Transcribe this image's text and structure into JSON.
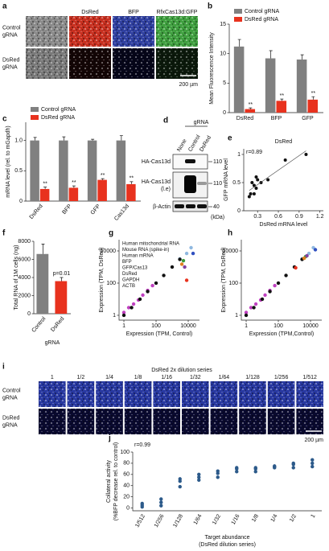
{
  "microscopy_a": {
    "label": "a",
    "columns": [
      "DsRed",
      "BFP",
      "RfxCas13d:GFP"
    ],
    "rows": [
      [
        "Control",
        "gRNA"
      ],
      [
        "DsRed",
        "gRNA"
      ]
    ],
    "scale_bar": "200 µm"
  },
  "blot_d": {
    "label": "d",
    "header": "gRNA",
    "lanes": [
      "None",
      "Control",
      "DsRed"
    ],
    "bands": [
      {
        "name": [
          "HA-Cas13d"
        ],
        "marker": "110"
      },
      {
        "name": [
          "HA-Cas13d",
          "(l.e)"
        ],
        "marker": "110"
      },
      {
        "name": [
          "β-Actin"
        ],
        "marker": "40"
      }
    ],
    "unit": "(kDa)"
  },
  "microscopy_i": {
    "label": "i",
    "title": "DsRed 2x dilution series",
    "columns": [
      "1",
      "1/2",
      "1/4",
      "1/8",
      "1/16",
      "1/32",
      "1/64",
      "1/128",
      "1/256",
      "1/512"
    ],
    "rows": [
      [
        "Control",
        "gRNA"
      ],
      [
        "DsRed",
        "gRNA"
      ]
    ],
    "scale_bar": "200 µm"
  },
  "chart_data": [
    {
      "label": "b",
      "type": "bar",
      "ylabel": "Mean Fluorescence Intensity",
      "categories": [
        "DsRed",
        "BFP",
        "GFP"
      ],
      "series": [
        {
          "name": "Control gRNA",
          "color": "#808080",
          "values": [
            11.2,
            9.2,
            9.0
          ],
          "errors": [
            1.2,
            1.3,
            0.8
          ]
        },
        {
          "name": "DsRed gRNA",
          "color": "#e8321e",
          "values": [
            0.6,
            2.0,
            2.2
          ],
          "errors": [
            0.2,
            0.3,
            0.5
          ],
          "annotations": [
            "**",
            "**",
            "**"
          ]
        }
      ],
      "ylim": [
        0,
        15
      ],
      "yticks": [
        0,
        5,
        10,
        15
      ],
      "legend": "top-left"
    },
    {
      "label": "c",
      "type": "bar",
      "ylabel": "mRNA level (rel. to mGapdh)",
      "categories": [
        "DsRed",
        "BFP",
        "GFP",
        "Cas13d"
      ],
      "series": [
        {
          "name": "Control gRNA",
          "color": "#808080",
          "values": [
            1.0,
            1.0,
            1.0,
            1.0
          ],
          "errors": [
            0.05,
            0.06,
            0.02,
            0.08
          ]
        },
        {
          "name": "DsRed gRNA",
          "color": "#e8321e",
          "values": [
            0.2,
            0.22,
            0.35,
            0.28
          ],
          "errors": [
            0.03,
            0.03,
            0.02,
            0.04
          ],
          "annotations": [
            "**",
            "**",
            "**",
            "**"
          ]
        }
      ],
      "ylim": [
        0,
        1.3
      ],
      "yticks": [
        0,
        0.5,
        {
          "value": 1,
          "label": "1.0"
        }
      ],
      "legend": "top-left"
    },
    {
      "label": "e",
      "type": "scatter",
      "title": "DsRed",
      "annotation": "r=0.89",
      "xlabel": "DsRed mRNA level",
      "ylabel": "GFP mRNA level",
      "color": "#111111",
      "x": [
        0.18,
        0.2,
        0.22,
        0.25,
        0.28,
        0.3,
        0.35,
        0.45,
        0.7,
        1.0,
        0.28,
        0.25
      ],
      "y": [
        0.25,
        0.3,
        0.5,
        0.45,
        0.4,
        0.55,
        0.5,
        0.55,
        0.9,
        1.0,
        0.6,
        0.3
      ],
      "xlim": [
        0.1,
        1.25
      ],
      "xticks": [
        0.3,
        0.6,
        0.9,
        1.2
      ],
      "ylim": [
        0,
        1.1
      ],
      "yticks": [
        0,
        0.5,
        1
      ],
      "trendline": true
    },
    {
      "label": "f",
      "type": "bar",
      "ylabel": "Total RNA of 1M cells (ng)",
      "xlabel": "gRNA",
      "categories": [
        "Control",
        "DsRed"
      ],
      "values": [
        6600,
        3600
      ],
      "errors": [
        1100,
        400
      ],
      "colors": [
        "#808080",
        "#e8321e"
      ],
      "annotation": "p=0.01",
      "ylim": [
        0,
        8000
      ],
      "yticks": [
        0,
        2000,
        4000,
        6000,
        8000
      ]
    },
    {
      "label": "g",
      "type": "scatter",
      "log": true,
      "xlabel": "Expression (TPM, Control)",
      "ylabel": "Expression (TPM, DsRed)",
      "xlim": [
        0.5,
        50000
      ],
      "ylim": [
        0.5,
        50000
      ],
      "xticks": [
        1,
        100,
        10000
      ],
      "yticks": [
        1,
        100,
        10000
      ],
      "series": [
        {
          "name": "Human mitochondrial RNA",
          "color": "#8fb8e0",
          "x": [
            3000,
            8000,
            15000
          ],
          "y": [
            3200,
            7000,
            16000
          ]
        },
        {
          "name": "Mouse RNA (spike-in)",
          "color": "#c040c0",
          "x": [
            1,
            2,
            4,
            8,
            15,
            30,
            60
          ],
          "y": [
            1.5,
            3,
            5,
            9,
            18,
            35,
            70
          ]
        },
        {
          "name": "Human mRNA",
          "color": "#111111",
          "x": [
            1,
            3,
            10,
            30,
            100,
            300,
            1000,
            3000
          ],
          "y": [
            1,
            3,
            10,
            30,
            100,
            300,
            1000,
            3000
          ]
        },
        {
          "name": "BFP",
          "color": "#3050c0",
          "x": [
            20000
          ],
          "y": [
            7000
          ]
        },
        {
          "name": "GFP/Cas13",
          "color": "#3a9a3a",
          "x": [
            5000
          ],
          "y": [
            2500
          ]
        },
        {
          "name": "DsRed",
          "color": "#e8321e",
          "x": [
            8000
          ],
          "y": [
            150
          ]
        },
        {
          "name": "GAPDH",
          "color": "#e08020",
          "x": [
            4000
          ],
          "y": [
            1500
          ]
        },
        {
          "name": "ACTB",
          "color": "#8040a0",
          "x": [
            6000
          ],
          "y": [
            1000
          ]
        }
      ]
    },
    {
      "label": "h",
      "type": "scatter",
      "log": true,
      "xlabel": "Expression (TPM,Control)",
      "ylabel": "Expression (TPM, DsRed)",
      "xlim": [
        0.5,
        50000
      ],
      "ylim": [
        0.5,
        50000
      ],
      "xticks": [
        1,
        100,
        10000
      ],
      "yticks": [
        1,
        100,
        10000
      ],
      "series": [
        {
          "color": "#8fb8e0",
          "x": [
            3000,
            8000,
            15000
          ],
          "y": [
            3200,
            7000,
            16000
          ]
        },
        {
          "color": "#c040c0",
          "x": [
            1,
            2,
            4,
            8,
            15,
            30,
            60
          ],
          "y": [
            1.5,
            3,
            5,
            9,
            18,
            35,
            70
          ]
        },
        {
          "color": "#111111",
          "x": [
            1,
            3,
            10,
            30,
            100,
            300,
            1000,
            3000
          ],
          "y": [
            1,
            3,
            10,
            30,
            100,
            300,
            1000,
            3000
          ]
        },
        {
          "color": "#3050c0",
          "x": [
            20000
          ],
          "y": [
            12000
          ]
        },
        {
          "color": "#3a9a3a",
          "x": [
            5000
          ],
          "y": [
            4500
          ]
        },
        {
          "color": "#e8321e",
          "x": [
            1200
          ],
          "y": [
            900
          ]
        },
        {
          "color": "#e08020",
          "x": [
            4000
          ],
          "y": [
            3500
          ]
        },
        {
          "color": "#8040a0",
          "x": [
            6000
          ],
          "y": [
            5000
          ]
        }
      ]
    },
    {
      "label": "j",
      "type": "dot",
      "annotation": "r=0.99",
      "color": "#2c5a8a",
      "ylabel": [
        "Collateral activity",
        "(%BFP decrease rel. to control)"
      ],
      "xlabel": [
        "Target abundance",
        "(DsRed dilution series)"
      ],
      "categories": [
        "1/512",
        "1/256",
        "1/128",
        "1/64",
        "1/32",
        "1/16",
        "1/8",
        "1/4",
        "1/2",
        "1"
      ],
      "values": [
        [
          2,
          8,
          5
        ],
        [
          10,
          16,
          4
        ],
        [
          38,
          48,
          52
        ],
        [
          50,
          55,
          60
        ],
        [
          55,
          62,
          66
        ],
        [
          65,
          70,
          72
        ],
        [
          65,
          70,
          72
        ],
        [
          72,
          74,
          75
        ],
        [
          72,
          78,
          80
        ],
        [
          74,
          80,
          86
        ]
      ],
      "ylim": [
        -5,
        100
      ],
      "yticks": [
        0,
        20,
        40,
        60,
        80,
        100
      ]
    }
  ]
}
